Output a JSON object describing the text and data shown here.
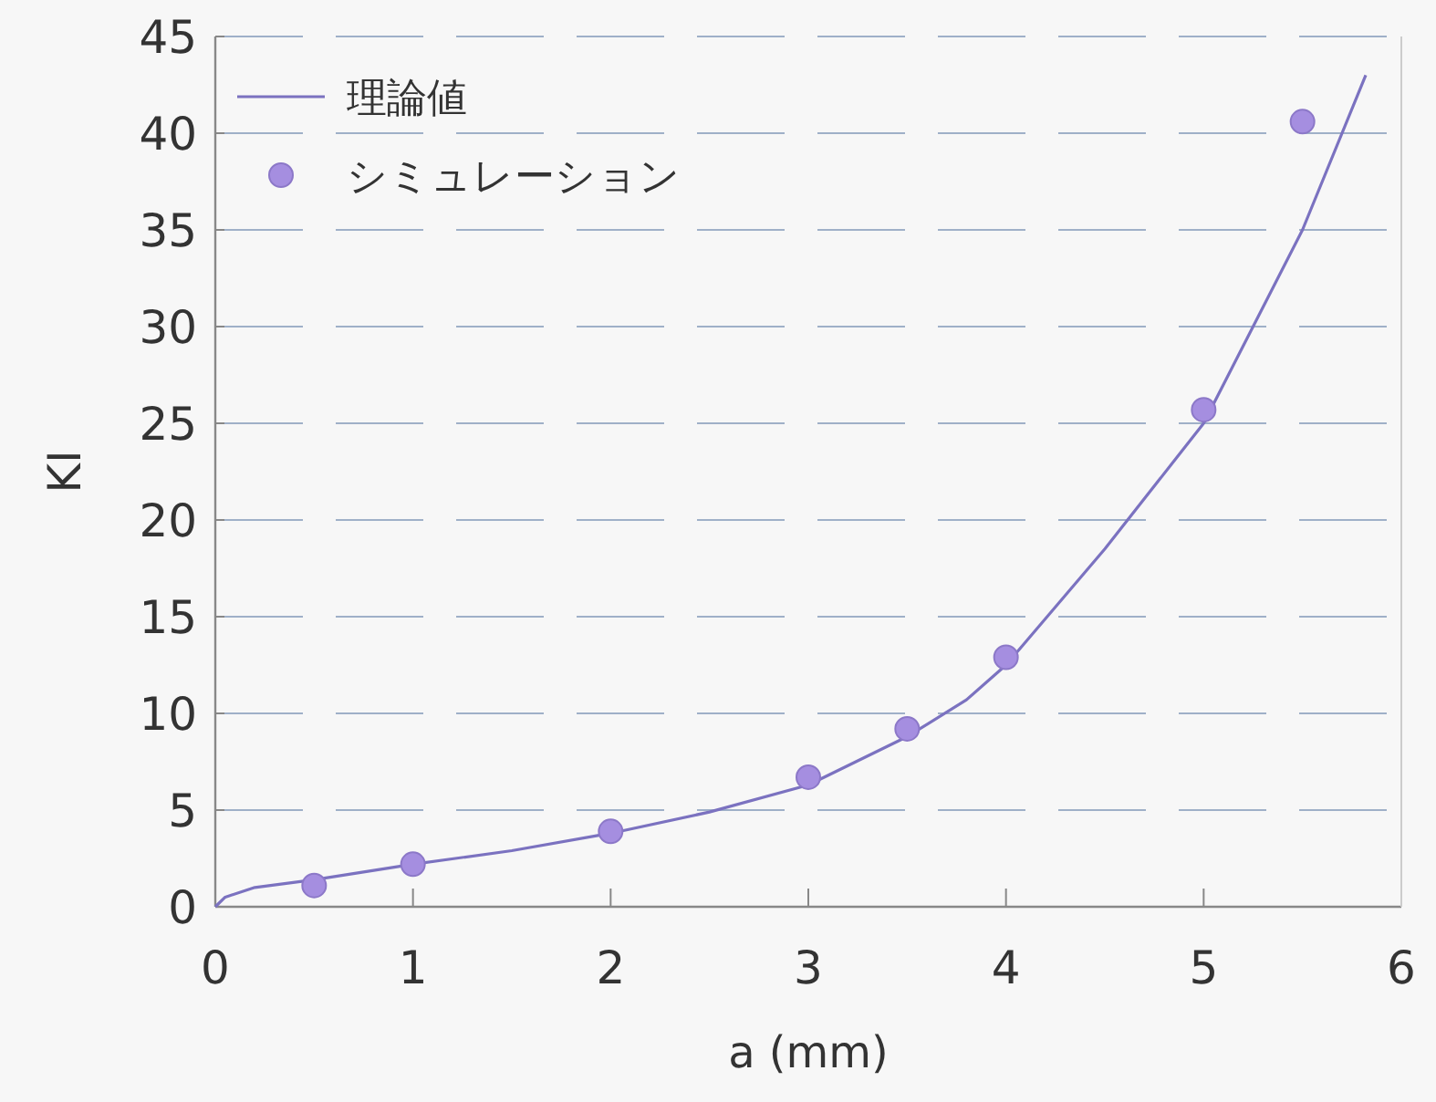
{
  "chart_data": {
    "type": "line",
    "xlabel": "a (mm)",
    "ylabel": "KI",
    "xlim": [
      0,
      6
    ],
    "ylim": [
      0,
      45
    ],
    "xticks": [
      0,
      1,
      2,
      3,
      4,
      5,
      6
    ],
    "yticks": [
      0,
      5,
      10,
      15,
      20,
      25,
      30,
      35,
      40,
      45
    ],
    "grid": "y",
    "legend": "top left",
    "series": [
      {
        "name": "理論値",
        "type": "line",
        "marker": "none",
        "line_style": "solid",
        "color": "#7b72c0",
        "x": [
          0,
          0.05,
          0.2,
          0.5,
          1,
          1.5,
          2,
          2.5,
          3,
          3.5,
          3.8,
          4,
          4.5,
          5,
          5.5,
          5.82
        ],
        "values": [
          0,
          0.5,
          1,
          1.4,
          2.2,
          2.9,
          3.8,
          4.9,
          6.3,
          8.8,
          10.7,
          12.5,
          18.5,
          25,
          35,
          43
        ]
      },
      {
        "name": "シミュレーション",
        "type": "scatter",
        "marker": "circle",
        "color": "#a58ee0",
        "x": [
          0.5,
          1,
          2,
          3,
          3.5,
          4,
          5,
          5.5
        ],
        "values": [
          1.1,
          2.2,
          3.9,
          6.7,
          9.2,
          12.9,
          25.7,
          40.6
        ]
      }
    ]
  }
}
